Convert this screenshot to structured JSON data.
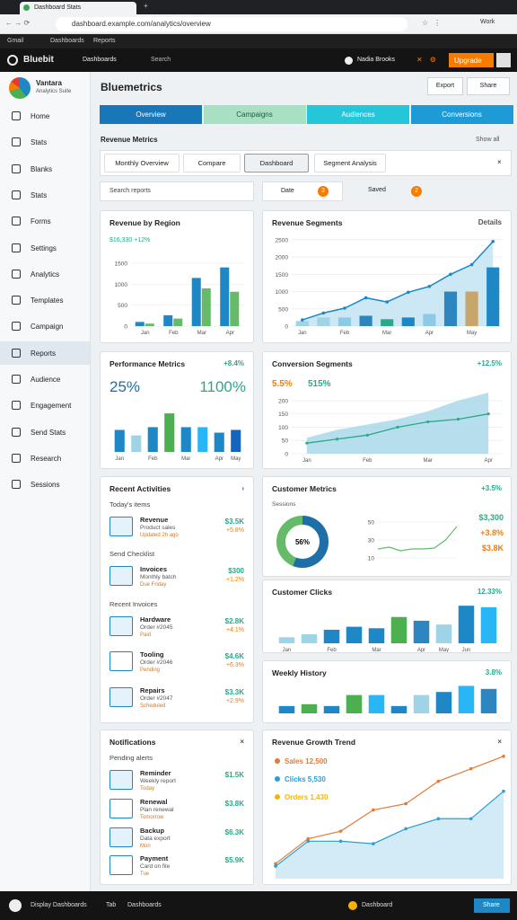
{
  "browser": {
    "tab": "Dashboard Stats",
    "url": "dashboard.example.com/analytics/overview",
    "bookmarks": [
      "Gmail",
      "Dashboards",
      "Reports"
    ],
    "profile": "Work"
  },
  "app": {
    "brand": "Bluebit",
    "menu": "Dashboards",
    "search": "Search",
    "user": "Nadia Brooks",
    "action": "Upgrade"
  },
  "sidebar": {
    "title": "Vantara",
    "subtitle": "Analytics Suite",
    "active": 9,
    "items": [
      "Home",
      "Stats",
      "Blanks",
      "Stats",
      "Forms",
      "Settings",
      "Analytics",
      "Templates",
      "Campaign",
      "Reports",
      "Audience",
      "Engagement",
      "Send Stats",
      "Research",
      "Sessions"
    ]
  },
  "page": {
    "title": "Bluemetrics",
    "buttons": [
      "Export",
      "Share"
    ],
    "tabs": [
      "Overview",
      "Campaigns",
      "Audiences",
      "Conversions"
    ],
    "section": "Revenue Metrics",
    "section_link": "Show all",
    "filters": [
      "Monthly Overview",
      "Compare",
      "Dashboard",
      "Segment Analysis"
    ],
    "search": "Search reports",
    "date": "Date",
    "date_count": "3",
    "saved": "Saved",
    "saved_count": "2"
  },
  "cards": [
    {
      "type": "bar",
      "title": "Revenue by Region",
      "subtitle": "$16,330 +12%",
      "categories": [
        "Jan",
        "Feb",
        "Mar",
        "Apr"
      ],
      "ylim": [
        0,
        1800
      ],
      "yticks": [
        0,
        500,
        1000,
        1500
      ],
      "series": [
        {
          "color": "#1e88c7",
          "values": [
            100,
            260,
            1150,
            1400
          ]
        },
        {
          "color": "#66bb6a",
          "values": [
            60,
            180,
            900,
            820
          ]
        }
      ]
    },
    {
      "type": "combo",
      "title": "Revenue Segments",
      "link": "Details",
      "categories": [
        "Jan",
        null,
        "Feb",
        null,
        "Mar",
        null,
        "Apr",
        null,
        "May",
        null
      ],
      "ylim": [
        0,
        2600
      ],
      "yticks": [
        0,
        500,
        1000,
        1500,
        2000,
        2500
      ],
      "line": {
        "color": "#1e88c7",
        "values": [
          180,
          380,
          520,
          820,
          700,
          980,
          1150,
          1500,
          1780,
          2450
        ]
      },
      "bars": {
        "colors": [
          "#9fd3e6",
          "#9fd3e6",
          "#8ecae6",
          "#2e86c1",
          "#2aa889",
          "#1e88c7",
          "#8ecae6",
          "#2e86c1",
          "#c8a66b",
          "#1e88c7"
        ],
        "values": [
          150,
          250,
          250,
          300,
          200,
          250,
          350,
          1000,
          1000,
          1700
        ]
      }
    },
    {
      "type": "kpi",
      "title": "Performance Metrics",
      "badge": "+8.4%",
      "kpis": [
        "25%",
        "1100%"
      ],
      "categories": [
        "Jan",
        null,
        "Feb",
        null,
        "Mar",
        null,
        "Apr",
        "May"
      ],
      "ylim": [
        0,
        80
      ],
      "colors": [
        "#1e88c7",
        "#9fd3e6",
        "#1e88c7",
        "#4caf50",
        "#1e88c7",
        "#29b6f6",
        "#1e88c7",
        "#1565c0"
      ],
      "values": [
        40,
        30,
        45,
        70,
        45,
        45,
        35,
        40
      ]
    },
    {
      "type": "area",
      "title": "Conversion Segments",
      "badge": "+12.5%",
      "kpis": [
        "5.5%",
        "515%"
      ],
      "categories": [
        "Jan",
        null,
        "Feb",
        null,
        "Mar",
        null,
        "Apr"
      ],
      "ylim": [
        0,
        220
      ],
      "yticks": [
        0,
        50,
        100,
        150,
        200
      ],
      "area": {
        "color": "#9fd3e6",
        "values": [
          60,
          90,
          110,
          130,
          160,
          200,
          230
        ]
      },
      "line": {
        "color": "#2aa889",
        "values": [
          40,
          55,
          70,
          100,
          120,
          130,
          150
        ]
      }
    },
    {
      "type": "list",
      "title": "Recent Activities",
      "link": "›",
      "sections": [
        {
          "heading": "Today's items",
          "items": [
            {
              "title": "Revenue",
              "sub": "Product sales",
              "meta": "Updated 2h ago",
              "value": "$3.5K",
              "change": "+5.8%"
            }
          ]
        },
        {
          "heading": "Send Checklist",
          "items": [
            {
              "title": "Invoices",
              "sub": "Monthly batch",
              "meta": "Due Friday",
              "value": "$300",
              "change": "+1.2%"
            }
          ]
        },
        {
          "heading": "Recent Invoices",
          "items": [
            {
              "title": "Hardware",
              "sub": "Order #2045",
              "meta": "Paid",
              "value": "$2.8K",
              "change": "+4.1%"
            },
            {
              "title": "Tooling",
              "sub": "Order #2046",
              "meta": "Pending",
              "value": "$4.6K",
              "change": "+6.3%"
            },
            {
              "title": "Repairs",
              "sub": "Order #2047",
              "meta": "Scheduled",
              "value": "$3.3K",
              "change": "+2.9%"
            }
          ]
        }
      ]
    },
    {
      "type": "donut",
      "title": "Customer Metrics",
      "badge": "+3.5%",
      "subtitle": "Sessions",
      "value": 56,
      "value_label": "56%",
      "ylim": [
        0,
        60
      ],
      "yticks": [
        10,
        30,
        50
      ],
      "kpis": [
        "$3,300",
        "+3.8%",
        "$3.8K"
      ],
      "trend": {
        "color": "#66bb6a",
        "values": [
          20,
          22,
          18,
          20,
          20,
          21,
          30,
          45
        ]
      }
    },
    {
      "type": "columns",
      "title": "Customer Clicks",
      "badge": "12.33%",
      "ylim": [
        0,
        55
      ],
      "categories": [
        "Jan",
        null,
        "Feb",
        null,
        "Mar",
        null,
        "Apr",
        "May",
        "Jun",
        null
      ],
      "colors": [
        "#9fd3e6",
        "#9fd3e6",
        "#1e88c7",
        "#1e88c7",
        "#1e88c7",
        "#4caf50",
        "#2e86c1",
        "#9fd3e6",
        "#1e88c7",
        "#29b6f6"
      ],
      "values": [
        8,
        12,
        18,
        22,
        20,
        35,
        30,
        25,
        50,
        48
      ]
    },
    {
      "type": "columns",
      "title": "Weekly History",
      "badge": "3.8%",
      "ylim": [
        0,
        50
      ],
      "categories": [
        null,
        null,
        null,
        null,
        null,
        null,
        null,
        null,
        null,
        null
      ],
      "colors": [
        "#1e88c7",
        "#4caf50",
        "#1e88c7",
        "#4caf50",
        "#29b6f6",
        "#1e88c7",
        "#9fd3e6",
        "#1e88c7",
        "#29b6f6",
        "#2e86c1"
      ],
      "values": [
        12,
        15,
        12,
        30,
        30,
        12,
        30,
        35,
        45,
        40
      ]
    },
    {
      "type": "list",
      "title": "Notifications",
      "link": "×",
      "sections": [
        {
          "heading": "Pending alerts",
          "items": [
            {
              "title": "Reminder",
              "sub": "Weekly report",
              "meta": "Today",
              "value": "$1.5K",
              "change": ""
            },
            {
              "title": "Renewal",
              "sub": "Plan renewal",
              "meta": "Tomorrow",
              "value": "$3.8K",
              "change": ""
            },
            {
              "title": "Backup",
              "sub": "Data export",
              "meta": "Mon",
              "value": "$6.3K",
              "change": ""
            },
            {
              "title": "Payment",
              "sub": "Card on file",
              "meta": "Tue",
              "value": "$5.9K",
              "change": ""
            }
          ]
        }
      ]
    },
    {
      "type": "trend",
      "title": "Revenue Growth Trend",
      "link": "×",
      "ylim": [
        0,
        100
      ],
      "kpis": [
        {
          "text": "Sales 12,500",
          "color": "#e07b39"
        },
        {
          "text": "Clicks 5,530",
          "color": "#2a9fd6"
        },
        {
          "text": "Orders 1,430",
          "color": "#f2b705"
        }
      ],
      "series": [
        {
          "color": "#e07b39",
          "values": [
            12,
            32,
            38,
            55,
            60,
            78,
            88,
            98
          ]
        },
        {
          "color": "#2a9fd6",
          "values": [
            10,
            30,
            30,
            28,
            40,
            48,
            48,
            70
          ]
        }
      ]
    }
  ],
  "footer": {
    "left": "Display Dashboards",
    "tab": "Tab",
    "center": "Dashboards",
    "link": "Dashboard",
    "button": "Share"
  }
}
